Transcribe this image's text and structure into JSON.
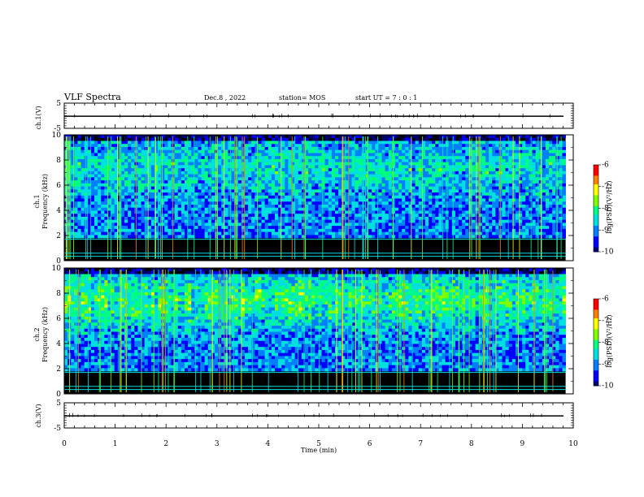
{
  "header": {
    "title": "VLF Spectra",
    "date": "Dec.8 , 2022",
    "station": "station= MOS",
    "start": "start  UT =   7 : 0  : 1"
  },
  "chart_data": [
    {
      "type": "line",
      "name": "ch1-voltage",
      "ylabel": "ch.1(V)",
      "ylim": [
        -5,
        5
      ],
      "yticks": [
        "5",
        "-5"
      ],
      "xlim": [
        0,
        10
      ]
    },
    {
      "type": "heatmap",
      "name": "ch1-spectrogram",
      "ylabel": "Frequency (kHz)",
      "ylabel_prefix": "ch.1",
      "ylim": [
        0,
        10
      ],
      "yticks": [
        "10",
        "8",
        "6",
        "4",
        "2",
        "0"
      ],
      "xlim": [
        0,
        9.85
      ],
      "colorbar": {
        "label": "log(PSD)(V²/Hz)",
        "range": [
          -10,
          -6
        ],
        "ticks": [
          "-6",
          "-7",
          "-8",
          "-9",
          "-10"
        ]
      }
    },
    {
      "type": "heatmap",
      "name": "ch2-spectrogram",
      "ylabel": "Frequency (kHz)",
      "ylabel_prefix": "ch.2",
      "ylim": [
        0,
        10
      ],
      "yticks": [
        "10",
        "8",
        "6",
        "4",
        "2",
        "0"
      ],
      "xlim": [
        0,
        9.85
      ],
      "colorbar": {
        "label": "log(PSD)(V²/Hz)",
        "range": [
          -10,
          -6
        ],
        "ticks": [
          "-6",
          "-7",
          "-8",
          "-9",
          "-10"
        ]
      }
    },
    {
      "type": "line",
      "name": "ch3-voltage",
      "ylabel": "ch.3(V)",
      "ylim": [
        -5,
        5
      ],
      "yticks": [
        "5",
        "-5"
      ],
      "xlim": [
        0,
        10
      ]
    }
  ],
  "xaxis": {
    "label": "Time  (min)",
    "ticks": [
      "0",
      "1",
      "2",
      "3",
      "4",
      "5",
      "6",
      "7",
      "8",
      "9",
      "10"
    ]
  },
  "colors": {
    "scale": [
      "#000070",
      "#0000ff",
      "#0080ff",
      "#00e0e0",
      "#00ff80",
      "#80ff00",
      "#ffff00",
      "#ff8000",
      "#ff0000",
      "#ffffff"
    ]
  }
}
